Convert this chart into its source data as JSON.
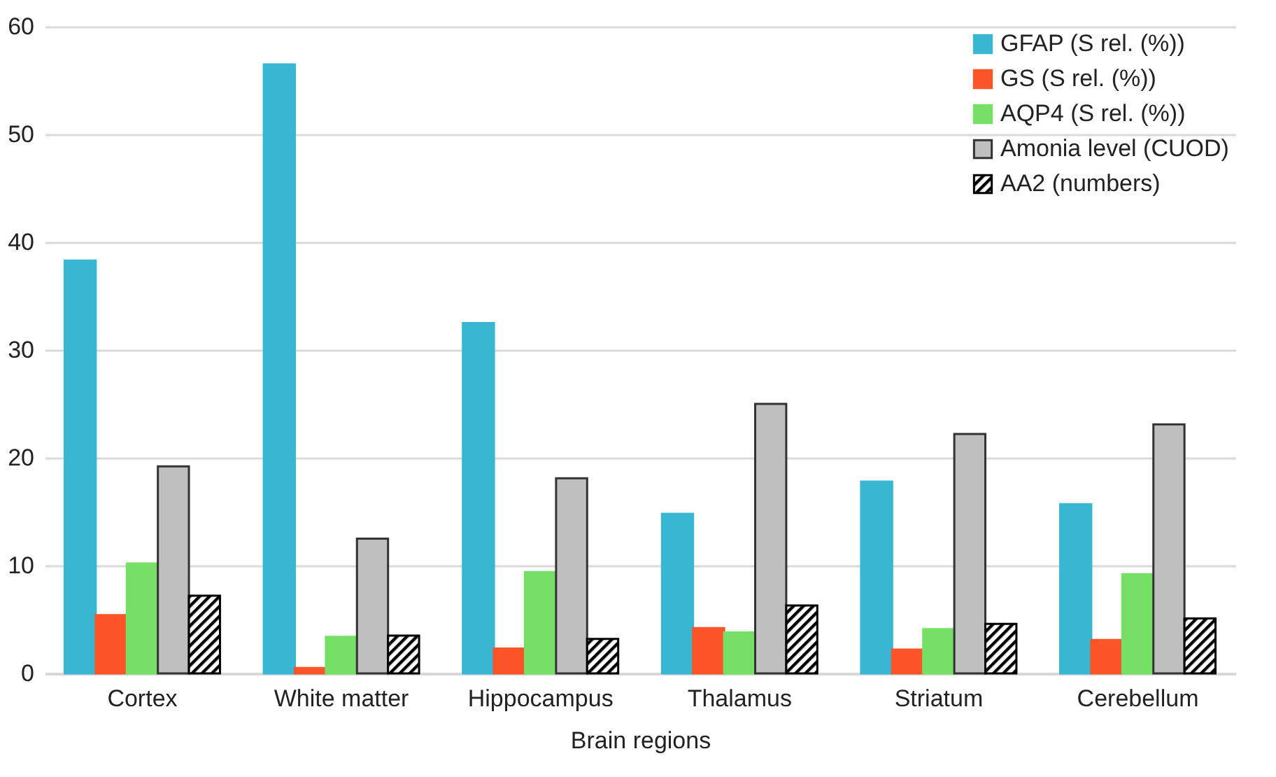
{
  "chart_data": {
    "type": "bar",
    "xlabel": "Brain regions",
    "categories": [
      "Cortex",
      "White matter",
      "Hippocampus",
      "Thalamus",
      "Striatum",
      "Cerebellum"
    ],
    "series": [
      {
        "name": "GFAP (S rel. (%))",
        "color": "#38b6d2",
        "values": [
          38.3,
          56.5,
          32.5,
          14.8,
          17.8,
          15.7
        ]
      },
      {
        "name": "GS (S rel. (%))",
        "color": "#fa5428",
        "values": [
          5.4,
          0.5,
          2.3,
          4.2,
          2.2,
          3.1
        ]
      },
      {
        "name": "AQP4 (S rel. (%))",
        "color": "#75e065",
        "values": [
          10.2,
          3.4,
          9.4,
          3.8,
          4.1,
          9.2
        ]
      },
      {
        "name": "Amonia level (CUOD)",
        "color": "#bfbfbf",
        "values": [
          19.2,
          12.5,
          18.1,
          25.0,
          22.2,
          23.1
        ]
      },
      {
        "name": "AA2 (numbers)",
        "color": "#000000",
        "values": [
          7.2,
          3.5,
          3.2,
          6.3,
          4.6,
          5.1
        ]
      }
    ],
    "ylim": [
      0,
      60
    ],
    "yticks": [
      0,
      10,
      20,
      30,
      40,
      50,
      60
    ],
    "grid": "y",
    "legend": "top right"
  }
}
